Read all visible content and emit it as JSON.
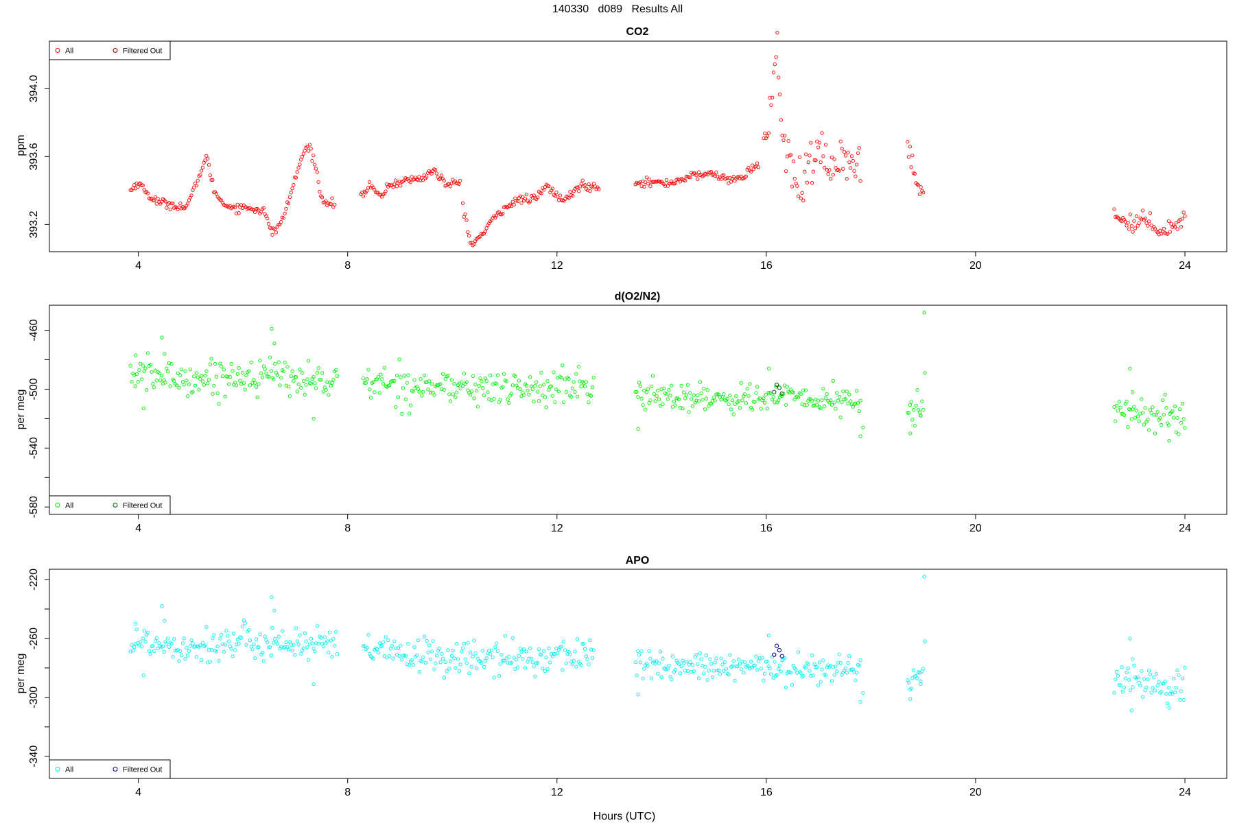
{
  "page_title": "140330   d089   Results All",
  "x_axis_label": "Hours (UTC)",
  "chart_data": [
    {
      "type": "scatter",
      "title": "CO2",
      "ylabel": "ppm",
      "xlabel": "Hours (UTC)",
      "xlim": [
        2.3,
        24.8
      ],
      "ylim": [
        393.04,
        394.28
      ],
      "x_ticks": [
        4,
        8,
        12,
        16,
        20,
        24
      ],
      "y_ticks": [
        393.2,
        393.6,
        394.0
      ],
      "y_tick_labels": [
        "393.2",
        "393.6",
        "394.0"
      ],
      "legend": {
        "placement": "top-left",
        "entries": [
          "All",
          "Filtered Out"
        ]
      },
      "colors": {
        "all": "#ff0000",
        "filtered": "#8b0000"
      },
      "series": [
        {
          "name": "All",
          "segments": [
            {
              "x": [
                3.85,
                4.0,
                4.2,
                4.4,
                4.6,
                4.9,
                5.0,
                5.15,
                5.3,
                5.45,
                5.6,
                5.8,
                6.1,
                6.4,
                6.55,
                6.75,
                6.95,
                7.15,
                7.25,
                7.35,
                7.5,
                7.75
              ],
              "y": [
                393.4,
                393.45,
                393.37,
                393.33,
                393.32,
                393.3,
                393.35,
                393.48,
                393.6,
                393.4,
                393.33,
                393.3,
                393.3,
                393.28,
                393.15,
                393.22,
                393.42,
                393.62,
                393.66,
                393.6,
                393.35,
                393.32
              ],
              "noise": 0.012
            },
            {
              "x": [
                8.25,
                8.45,
                8.6,
                8.8,
                9.1,
                9.4,
                9.65,
                9.9,
                10.15
              ],
              "y": [
                393.37,
                393.43,
                393.36,
                393.43,
                393.46,
                393.47,
                393.52,
                393.43,
                393.45
              ],
              "noise": 0.012
            },
            {
              "x": [
                10.2,
                10.35,
                10.6,
                10.8,
                11.0,
                11.3,
                11.6,
                11.8,
                12.1,
                12.3,
                12.45,
                12.6,
                12.8
              ],
              "y": [
                393.32,
                393.08,
                393.15,
                393.24,
                393.3,
                393.35,
                393.35,
                393.43,
                393.34,
                393.38,
                393.44,
                393.42,
                393.43
              ],
              "noise": 0.012
            },
            {
              "x": [
                13.5,
                13.8,
                14.1,
                14.5,
                14.9,
                15.3,
                15.5,
                15.7,
                15.85
              ],
              "y": [
                393.45,
                393.45,
                393.44,
                393.48,
                393.5,
                393.47,
                393.46,
                393.53,
                393.55
              ],
              "noise": 0.012
            },
            {
              "x": [
                15.95,
                16.05,
                16.15,
                16.2,
                16.25,
                16.32,
                16.45,
                16.55,
                16.65,
                16.85,
                17.05,
                17.25,
                17.45,
                17.65,
                17.8
              ],
              "y": [
                393.63,
                393.82,
                394.1,
                394.22,
                394.05,
                393.7,
                393.55,
                393.45,
                393.38,
                393.55,
                393.62,
                393.5,
                393.65,
                393.5,
                393.5
              ],
              "noise": 0.07
            },
            {
              "x": [
                18.7,
                18.8,
                18.9,
                19.0
              ],
              "y": [
                393.7,
                393.55,
                393.45,
                393.36
              ],
              "noise": 0.04
            },
            {
              "x": [
                22.65,
                22.8,
                23.0,
                23.2,
                23.4,
                23.6,
                23.8,
                24.0
              ],
              "y": [
                393.28,
                393.22,
                393.21,
                393.23,
                393.2,
                393.16,
                393.2,
                393.24
              ],
              "noise": 0.025
            }
          ]
        }
      ],
      "filtered_out": []
    },
    {
      "type": "scatter",
      "title": "d(O2/N2)",
      "ylabel": "per meg",
      "xlabel": "Hours (UTC)",
      "xlim": [
        2.3,
        24.8
      ],
      "ylim": [
        -585,
        -443
      ],
      "x_ticks": [
        4,
        8,
        12,
        16,
        20,
        24
      ],
      "y_ticks": [
        -460,
        -480,
        -500,
        -520,
        -540,
        -560,
        -580
      ],
      "y_tick_labels": [
        "-460",
        "",
        "-500",
        "",
        "-540",
        "",
        "-580"
      ],
      "legend": {
        "placement": "bottom-left",
        "entries": [
          "All",
          "Filtered Out"
        ]
      },
      "colors": {
        "all": "#00ee00",
        "filtered": "#006400"
      },
      "series": [
        {
          "name": "All",
          "segments": [
            {
              "x": [
                3.85,
                5.0,
                6.5,
                7.8
              ],
              "y": [
                -490,
                -493,
                -490,
                -496
              ],
              "noise": 6
            },
            {
              "x": [
                8.3,
                9.5,
                11.0,
                12.7
              ],
              "y": [
                -495,
                -498,
                -500,
                -498
              ],
              "noise": 6
            },
            {
              "x": [
                13.5,
                15.0,
                16.5,
                17.8
              ],
              "y": [
                -504,
                -506,
                -506,
                -509
              ],
              "noise": 5
            },
            {
              "x": [
                18.7,
                19.0
              ],
              "y": [
                -512,
                -516
              ],
              "noise": 7
            },
            {
              "x": [
                22.65,
                24.0
              ],
              "y": [
                -515,
                -520
              ],
              "noise": 6
            }
          ],
          "outliers": {
            "x": [
              3.95,
              4.1,
              4.45,
              4.5,
              6.55,
              6.6,
              7.35,
              13.55,
              16.05,
              17.8,
              17.85,
              18.75,
              18.95,
              19.02,
              19.03,
              22.95,
              23.0,
              23.7
            ],
            "y": [
              -477,
              -513,
              -465,
              -476,
              -459,
              -469,
              -520,
              -527,
              -486,
              -532,
              -526,
              -530,
              -518,
              -448,
              -489,
              -486,
              -502,
              -535
            ]
          }
        }
      ],
      "filtered_out": {
        "x": [
          16.15,
          16.2,
          16.25,
          16.3
        ],
        "y": [
          -502,
          -497,
          -499,
          -503
        ]
      }
    },
    {
      "type": "scatter",
      "title": "APO",
      "ylabel": "per meg",
      "xlabel": "Hours (UTC)",
      "xlim": [
        2.3,
        24.8
      ],
      "ylim": [
        -355,
        -213
      ],
      "x_ticks": [
        4,
        8,
        12,
        16,
        20,
        24
      ],
      "y_ticks": [
        -220,
        -240,
        -260,
        -280,
        -300,
        -320,
        -340
      ],
      "y_tick_labels": [
        "-220",
        "",
        "-260",
        "",
        "-300",
        "",
        "-340"
      ],
      "legend": {
        "placement": "bottom-left",
        "entries": [
          "All",
          "Filtered Out"
        ]
      },
      "colors": {
        "all": "#00eeee",
        "filtered": "#00008b"
      },
      "series": [
        {
          "name": "All",
          "segments": [
            {
              "x": [
                3.85,
                5.0,
                6.5,
                7.8
              ],
              "y": [
                -262,
                -265,
                -262,
                -266
              ],
              "noise": 6
            },
            {
              "x": [
                8.3,
                9.5,
                11.0,
                12.7
              ],
              "y": [
                -268,
                -272,
                -274,
                -270
              ],
              "noise": 6
            },
            {
              "x": [
                13.5,
                15.0,
                16.5,
                17.8
              ],
              "y": [
                -278,
                -280,
                -280,
                -281
              ],
              "noise": 5
            },
            {
              "x": [
                18.7,
                19.0
              ],
              "y": [
                -284,
                -287
              ],
              "noise": 7
            },
            {
              "x": [
                22.65,
                24.0
              ],
              "y": [
                -288,
                -292
              ],
              "noise": 6
            }
          ],
          "outliers": {
            "x": [
              3.95,
              4.1,
              4.45,
              4.5,
              6.55,
              6.6,
              7.35,
              13.55,
              16.05,
              17.8,
              17.85,
              18.75,
              18.95,
              19.02,
              19.03,
              22.95,
              23.0,
              23.7
            ],
            "y": [
              -250,
              -285,
              -238,
              -248,
              -232,
              -241,
              -291,
              -298,
              -258,
              -303,
              -297,
              -301,
              -289,
              -218,
              -262,
              -260,
              -274,
              -307
            ]
          }
        }
      ],
      "filtered_out": {
        "x": [
          16.15,
          16.2,
          16.25,
          16.3
        ],
        "y": [
          -271,
          -265,
          -268,
          -272
        ]
      }
    }
  ]
}
